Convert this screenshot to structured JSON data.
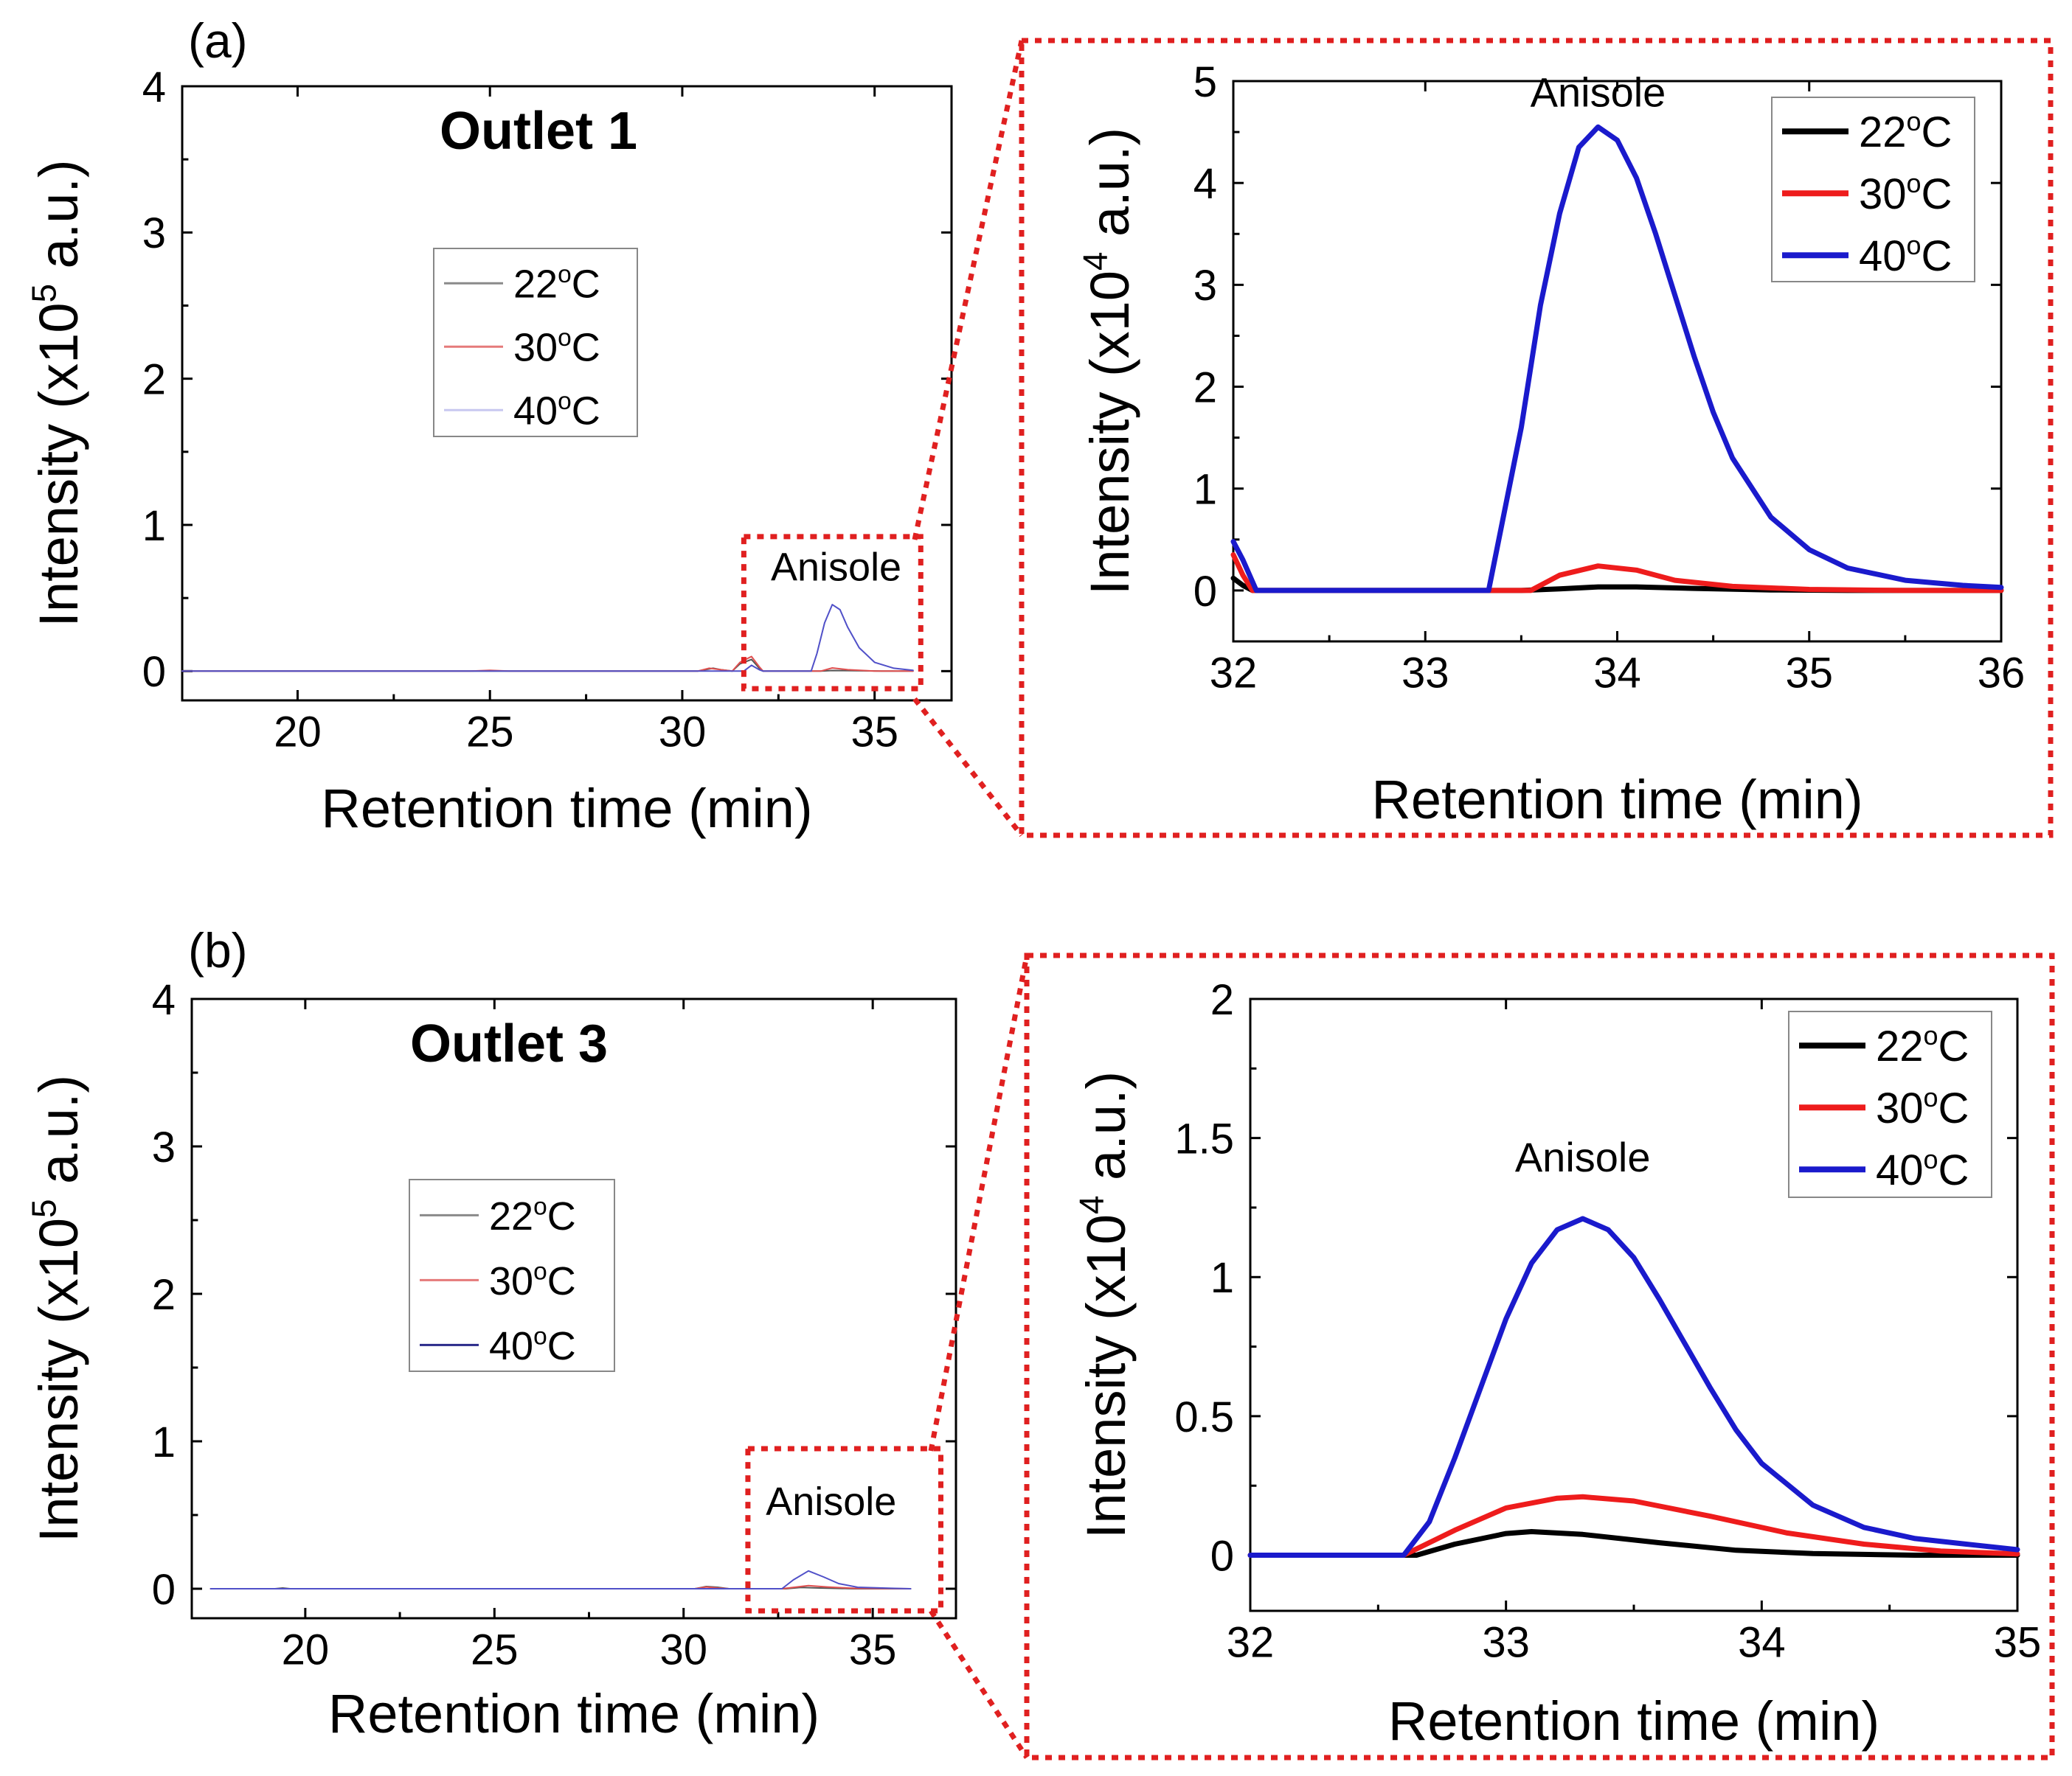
{
  "chart_data": [
    {
      "id": "a-main",
      "panel_label": "(a)",
      "type": "line",
      "title": "Outlet 1",
      "xlabel": "Retention time (min)",
      "ylabel_prefix": "Intensity (x10",
      "ylabel_exp": "5",
      "ylabel_suffix": " a.u.)",
      "xlim": [
        17,
        37
      ],
      "ylim": [
        -0.2,
        4
      ],
      "xticks": [
        20,
        25,
        30,
        35
      ],
      "yticks": [
        0,
        1,
        2,
        3,
        4
      ],
      "annotation": {
        "text": "Anisole",
        "x": 34,
        "y": 0.62
      },
      "legend_position": "center-left",
      "legend": [
        {
          "label_main": "22",
          "label_sup": "o",
          "label_unit": "C",
          "color": "#8a8a8a"
        },
        {
          "label_main": "30",
          "label_sup": "o",
          "label_unit": "C",
          "color": "#e57a7a"
        },
        {
          "label_main": "40",
          "label_sup": "o",
          "label_unit": "C",
          "color": "#c8c8f0"
        }
      ],
      "series": [
        {
          "color": "#555555",
          "width": 2,
          "points": [
            [
              17,
              0
            ],
            [
              30.4,
              0
            ],
            [
              30.6,
              0.01
            ],
            [
              30.8,
              0.02
            ],
            [
              31,
              0.01
            ],
            [
              31.3,
              0
            ],
            [
              31.5,
              0.05
            ],
            [
              31.8,
              0.08
            ],
            [
              32,
              0.02
            ],
            [
              32.1,
              0
            ],
            [
              33.6,
              0
            ],
            [
              33.9,
              0.004
            ],
            [
              34.5,
              0.003
            ],
            [
              35.2,
              0
            ],
            [
              36,
              0
            ]
          ]
        },
        {
          "color": "#e05050",
          "width": 2,
          "points": [
            [
              17,
              0
            ],
            [
              24.5,
              0
            ],
            [
              25,
              0.005
            ],
            [
              25.5,
              0
            ],
            [
              30.4,
              0
            ],
            [
              30.7,
              0.02
            ],
            [
              31,
              0.01
            ],
            [
              31.3,
              0
            ],
            [
              31.5,
              0.06
            ],
            [
              31.8,
              0.1
            ],
            [
              32,
              0.03
            ],
            [
              32.1,
              0
            ],
            [
              33.6,
              0
            ],
            [
              33.9,
              0.022
            ],
            [
              34.3,
              0.01
            ],
            [
              35,
              0
            ],
            [
              36,
              0
            ]
          ]
        },
        {
          "color": "#5050c8",
          "width": 2,
          "points": [
            [
              17,
              0
            ],
            [
              31.6,
              0
            ],
            [
              31.8,
              0.04
            ],
            [
              32,
              0.01
            ],
            [
              32.1,
              0
            ],
            [
              33.35,
              0
            ],
            [
              33.5,
              0.12
            ],
            [
              33.7,
              0.33
            ],
            [
              33.9,
              0.455
            ],
            [
              34.1,
              0.42
            ],
            [
              34.3,
              0.3
            ],
            [
              34.6,
              0.16
            ],
            [
              35,
              0.06
            ],
            [
              35.5,
              0.02
            ],
            [
              36,
              0.005
            ]
          ]
        }
      ],
      "zoom_box": {
        "x0": 31.6,
        "x1": 36.2,
        "y0": -0.12,
        "y1": 0.92
      }
    },
    {
      "id": "a-zoom",
      "type": "line",
      "title": "",
      "xlabel": "Retention time (min)",
      "ylabel_prefix": "Intensity (x10",
      "ylabel_exp": "4",
      "ylabel_suffix": " a.u.)",
      "xlim": [
        32,
        36
      ],
      "ylim": [
        -0.5,
        5
      ],
      "xticks": [
        32,
        33,
        34,
        35,
        36
      ],
      "yticks": [
        0,
        1,
        2,
        3,
        4,
        5
      ],
      "annotation": {
        "text": "Anisole",
        "x": 33.9,
        "y": 4.75
      },
      "legend_position": "top-right",
      "legend": [
        {
          "label_main": "22",
          "label_sup": "o",
          "label_unit": "C",
          "color": "#000000"
        },
        {
          "label_main": "30",
          "label_sup": "o",
          "label_unit": "C",
          "color": "#ee1c1c"
        },
        {
          "label_main": "40",
          "label_sup": "o",
          "label_unit": "C",
          "color": "#1a1acc"
        }
      ],
      "series": [
        {
          "color": "#000000",
          "width": 7,
          "points": [
            [
              32,
              0.12
            ],
            [
              32.05,
              0.05
            ],
            [
              32.1,
              0
            ],
            [
              33.5,
              0
            ],
            [
              33.7,
              0.015
            ],
            [
              33.9,
              0.035
            ],
            [
              34.1,
              0.035
            ],
            [
              34.4,
              0.02
            ],
            [
              34.8,
              0.005
            ],
            [
              35.2,
              0
            ],
            [
              36,
              0
            ]
          ]
        },
        {
          "color": "#ee1c1c",
          "width": 7,
          "points": [
            [
              32,
              0.35
            ],
            [
              32.05,
              0.15
            ],
            [
              32.1,
              0
            ],
            [
              33.55,
              0
            ],
            [
              33.7,
              0.15
            ],
            [
              33.9,
              0.24
            ],
            [
              34.1,
              0.2
            ],
            [
              34.3,
              0.1
            ],
            [
              34.6,
              0.04
            ],
            [
              35,
              0.01
            ],
            [
              35.5,
              0
            ],
            [
              36,
              0
            ]
          ]
        },
        {
          "color": "#1a1acc",
          "width": 7,
          "points": [
            [
              32,
              0.48
            ],
            [
              32.05,
              0.3
            ],
            [
              32.12,
              0
            ],
            [
              33.33,
              0
            ],
            [
              33.5,
              1.6
            ],
            [
              33.6,
              2.8
            ],
            [
              33.7,
              3.7
            ],
            [
              33.8,
              4.35
            ],
            [
              33.9,
              4.55
            ],
            [
              34,
              4.42
            ],
            [
              34.1,
              4.05
            ],
            [
              34.2,
              3.5
            ],
            [
              34.3,
              2.9
            ],
            [
              34.4,
              2.3
            ],
            [
              34.5,
              1.75
            ],
            [
              34.6,
              1.3
            ],
            [
              34.8,
              0.72
            ],
            [
              35,
              0.4
            ],
            [
              35.2,
              0.22
            ],
            [
              35.5,
              0.1
            ],
            [
              35.8,
              0.05
            ],
            [
              36,
              0.03
            ]
          ]
        }
      ]
    },
    {
      "id": "b-main",
      "panel_label": "(b)",
      "type": "line",
      "title": "Outlet 3",
      "xlabel": "Retention time (min)",
      "ylabel_prefix": "Intensity (x10",
      "ylabel_exp": "5",
      "ylabel_suffix": " a.u.)",
      "xlim": [
        17,
        37.2
      ],
      "ylim": [
        -0.2,
        4
      ],
      "xticks": [
        20,
        25,
        30,
        35
      ],
      "yticks": [
        0,
        1,
        2,
        3,
        4
      ],
      "annotation": {
        "text": "Anisole",
        "x": 33.9,
        "y": 0.5
      },
      "legend_position": "center-left",
      "legend": [
        {
          "label_main": "22",
          "label_sup": "o",
          "label_unit": "C",
          "color": "#8a8a8a"
        },
        {
          "label_main": "30",
          "label_sup": "o",
          "label_unit": "C",
          "color": "#e57a7a"
        },
        {
          "label_main": "40",
          "label_sup": "o",
          "label_unit": "C",
          "color": "#2a2a8a"
        }
      ],
      "series": [
        {
          "color": "#555555",
          "width": 2,
          "points": [
            [
              17.5,
              0
            ],
            [
              19.2,
              0
            ],
            [
              19.4,
              0.005
            ],
            [
              19.6,
              0
            ],
            [
              30.3,
              0
            ],
            [
              30.6,
              0.015
            ],
            [
              30.9,
              0.01
            ],
            [
              31.2,
              0
            ],
            [
              32.7,
              0
            ],
            [
              33.1,
              0.009
            ],
            [
              33.6,
              0.005
            ],
            [
              34.5,
              0
            ],
            [
              36,
              0
            ]
          ]
        },
        {
          "color": "#e05050",
          "width": 2,
          "points": [
            [
              17.5,
              0
            ],
            [
              30.3,
              0
            ],
            [
              30.6,
              0.012
            ],
            [
              30.9,
              0.005
            ],
            [
              31.2,
              0
            ],
            [
              32.6,
              0
            ],
            [
              33.3,
              0.021
            ],
            [
              33.8,
              0.012
            ],
            [
              34.5,
              0.003
            ],
            [
              36,
              0
            ]
          ]
        },
        {
          "color": "#5050c8",
          "width": 2,
          "points": [
            [
              17.5,
              0
            ],
            [
              32.6,
              0
            ],
            [
              32.9,
              0.06
            ],
            [
              33.3,
              0.121
            ],
            [
              33.7,
              0.08
            ],
            [
              34.1,
              0.035
            ],
            [
              34.6,
              0.01
            ],
            [
              35.5,
              0.003
            ],
            [
              36,
              0
            ]
          ]
        }
      ],
      "zoom_box": {
        "x0": 31.7,
        "x1": 36.8,
        "y0": -0.15,
        "y1": 0.95
      }
    },
    {
      "id": "b-zoom",
      "type": "line",
      "title": "",
      "xlabel": "Retention time (min)",
      "ylabel_prefix": "Intensity (x10",
      "ylabel_exp": "4",
      "ylabel_suffix": " a.u.)",
      "xlim": [
        32,
        35
      ],
      "ylim": [
        -0.2,
        2
      ],
      "xticks": [
        32,
        33,
        34,
        35
      ],
      "yticks": [
        0,
        0.5,
        1,
        1.5,
        2
      ],
      "annotation": {
        "text": "Anisole",
        "x": 33.3,
        "y": 1.38
      },
      "legend_position": "top-right",
      "legend": [
        {
          "label_main": "22",
          "label_sup": "o",
          "label_unit": "C",
          "color": "#000000"
        },
        {
          "label_main": "30",
          "label_sup": "o",
          "label_unit": "C",
          "color": "#ee1c1c"
        },
        {
          "label_main": "40",
          "label_sup": "o",
          "label_unit": "C",
          "color": "#1a1acc"
        }
      ],
      "series": [
        {
          "color": "#000000",
          "width": 7,
          "points": [
            [
              32,
              0
            ],
            [
              32.65,
              0
            ],
            [
              32.8,
              0.04
            ],
            [
              33,
              0.078
            ],
            [
              33.1,
              0.085
            ],
            [
              33.3,
              0.075
            ],
            [
              33.6,
              0.045
            ],
            [
              33.9,
              0.018
            ],
            [
              34.2,
              0.006
            ],
            [
              34.6,
              0
            ],
            [
              35,
              0
            ]
          ]
        },
        {
          "color": "#ee1c1c",
          "width": 7,
          "points": [
            [
              32,
              0
            ],
            [
              32.6,
              0
            ],
            [
              32.8,
              0.09
            ],
            [
              33,
              0.17
            ],
            [
              33.2,
              0.205
            ],
            [
              33.3,
              0.21
            ],
            [
              33.5,
              0.195
            ],
            [
              33.8,
              0.14
            ],
            [
              34.1,
              0.08
            ],
            [
              34.4,
              0.04
            ],
            [
              34.7,
              0.015
            ],
            [
              35,
              0.005
            ]
          ]
        },
        {
          "color": "#1a1acc",
          "width": 7,
          "points": [
            [
              32,
              0
            ],
            [
              32.6,
              0
            ],
            [
              32.7,
              0.12
            ],
            [
              32.8,
              0.35
            ],
            [
              32.9,
              0.6
            ],
            [
              33,
              0.85
            ],
            [
              33.1,
              1.05
            ],
            [
              33.2,
              1.17
            ],
            [
              33.3,
              1.21
            ],
            [
              33.4,
              1.17
            ],
            [
              33.5,
              1.07
            ],
            [
              33.6,
              0.92
            ],
            [
              33.7,
              0.76
            ],
            [
              33.8,
              0.6
            ],
            [
              33.9,
              0.45
            ],
            [
              34,
              0.33
            ],
            [
              34.2,
              0.18
            ],
            [
              34.4,
              0.1
            ],
            [
              34.6,
              0.06
            ],
            [
              34.8,
              0.04
            ],
            [
              35,
              0.02
            ]
          ]
        }
      ]
    }
  ]
}
